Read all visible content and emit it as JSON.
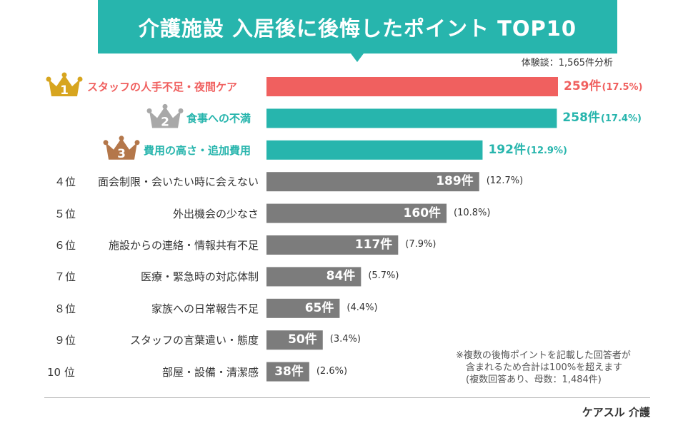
{
  "title": "介護施設 入居後に後悔したポイント TOP10",
  "respondents": "体験談：1,565件分析",
  "note": [
    "※複数の後悔ポイントを記載した回答者が",
    "含まれるため合計は100%を超えます",
    "(複数回答あり、母数：1,484件)"
  ],
  "brand": "ケアスル 介護",
  "colors": {
    "rank1": "#f0605f",
    "top3": "#27b5ad",
    "other": "#7c7c7c",
    "gold": "#d7a51f",
    "silver": "#a8a8a8",
    "bronze": "#b4774a"
  },
  "chart_data": {
    "type": "bar",
    "orientation": "horizontal",
    "title": "介護施設 入居後に後悔したポイント TOP10",
    "xlim": [
      0,
      259
    ],
    "categories": [
      "スタッフの人手不足・夜間ケア",
      "食事への不満",
      "費用の高さ・追加費用",
      "面会制限・会いたい時に会えない",
      "外出機会の少なさ",
      "施設からの連絡・情報共有不足",
      "医療・緊急時の対応体制",
      "家族への日常報告不足",
      "スタッフの言葉遣い・態度",
      "部屋・設備・清潔感"
    ],
    "ranks": [
      "1",
      "2",
      "3",
      "４位",
      "５位",
      "６位",
      "７位",
      "８位",
      "９位",
      "10 位"
    ],
    "values": [
      259,
      258,
      192,
      189,
      160,
      117,
      84,
      65,
      50,
      38
    ],
    "count_labels": [
      "259件",
      "258件",
      "192件",
      "189件",
      "160件",
      "117件",
      "84件",
      "65件",
      "50件",
      "38件"
    ],
    "percent_labels": [
      "(17.5%)",
      "(17.4%)",
      "(12.9%)",
      "(12.7%)",
      "(10.8%)",
      "(7.9%)",
      "(5.7%)",
      "(4.4%)",
      "(3.4%)",
      "(2.6%)"
    ]
  }
}
